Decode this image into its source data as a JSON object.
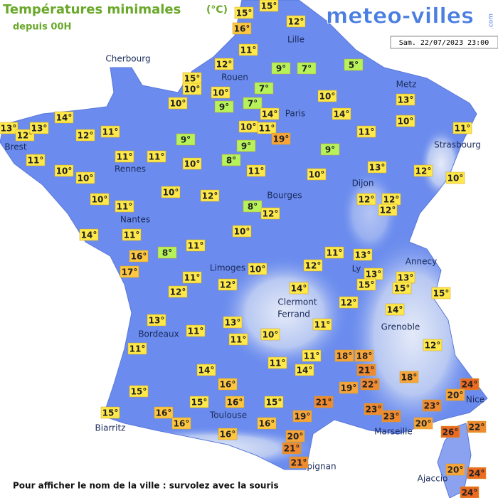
{
  "header": {
    "title": "Températures minimales",
    "unit": "(°C)",
    "subtitle": "depuis 00H",
    "logo": "meteo-villes",
    "logo_suffix": ".com",
    "datetime": "Sam. 22/07/2023 23:00"
  },
  "footer": "Pour afficher le nom de la ville : survolez avec la souris",
  "cities": [
    "Cherbourg",
    "Lille",
    "Rouen",
    "Paris",
    "Metz",
    "Brest",
    "Rennes",
    "Strasbourg",
    "Dijon",
    "Bourges",
    "Nantes",
    "Limoges",
    "Ly",
    "Annecy",
    "Clermont",
    "Ferrand",
    "Grenoble",
    "Bordeaux",
    "Nice",
    "Toulouse",
    "Marseille",
    "Biarritz",
    "pignan",
    "Ajaccio"
  ],
  "readings": [
    {
      "value": 15,
      "label": "15°"
    },
    {
      "value": 15,
      "label": "15°"
    },
    {
      "value": 12,
      "label": "12°"
    },
    {
      "value": 16,
      "label": "16°"
    },
    {
      "value": 11,
      "label": "11°"
    },
    {
      "value": 9,
      "label": "9°"
    },
    {
      "value": 7,
      "label": "7°"
    },
    {
      "value": 5,
      "label": "5°"
    },
    {
      "value": 12,
      "label": "12°"
    },
    {
      "value": 15,
      "label": "15°"
    },
    {
      "value": 10,
      "label": "10°"
    },
    {
      "value": 10,
      "label": "10°"
    },
    {
      "value": 7,
      "label": "7°"
    },
    {
      "value": 9,
      "label": "9°"
    },
    {
      "value": 7,
      "label": "7°"
    },
    {
      "value": 10,
      "label": "10°"
    },
    {
      "value": 14,
      "label": "14°"
    },
    {
      "value": 10,
      "label": "10°"
    },
    {
      "value": 13,
      "label": "13°"
    },
    {
      "value": 14,
      "label": "14°"
    },
    {
      "value": 10,
      "label": "10°"
    },
    {
      "value": 13,
      "label": "13°"
    },
    {
      "value": 12,
      "label": "12°"
    },
    {
      "value": 13,
      "label": "13°"
    },
    {
      "value": 14,
      "label": "14°"
    },
    {
      "value": 12,
      "label": "12°"
    },
    {
      "value": 11,
      "label": "11°"
    },
    {
      "value": 10,
      "label": "10°"
    },
    {
      "value": 11,
      "label": "11°"
    },
    {
      "value": 19,
      "label": "19°"
    },
    {
      "value": 11,
      "label": "11°"
    },
    {
      "value": 11,
      "label": "11°"
    },
    {
      "value": 9,
      "label": "9°"
    },
    {
      "value": 9,
      "label": "9°"
    },
    {
      "value": 9,
      "label": "9°"
    },
    {
      "value": 11,
      "label": "11°"
    },
    {
      "value": 11,
      "label": "11°"
    },
    {
      "value": 11,
      "label": "11°"
    },
    {
      "value": 10,
      "label": "10°"
    },
    {
      "value": 8,
      "label": "8°"
    },
    {
      "value": 10,
      "label": "10°"
    },
    {
      "value": 10,
      "label": "10°"
    },
    {
      "value": 11,
      "label": "11°"
    },
    {
      "value": 10,
      "label": "10°"
    },
    {
      "value": 13,
      "label": "13°"
    },
    {
      "value": 12,
      "label": "12°"
    },
    {
      "value": 10,
      "label": "10°"
    },
    {
      "value": 10,
      "label": "10°"
    },
    {
      "value": 11,
      "label": "11°"
    },
    {
      "value": 10,
      "label": "10°"
    },
    {
      "value": 12,
      "label": "12°"
    },
    {
      "value": 8,
      "label": "8°"
    },
    {
      "value": 12,
      "label": "12°"
    },
    {
      "value": 12,
      "label": "12°"
    },
    {
      "value": 12,
      "label": "12°"
    },
    {
      "value": 12,
      "label": "12°"
    },
    {
      "value": 14,
      "label": "14°"
    },
    {
      "value": 11,
      "label": "11°"
    },
    {
      "value": 10,
      "label": "10°"
    },
    {
      "value": 16,
      "label": "16°"
    },
    {
      "value": 8,
      "label": "8°"
    },
    {
      "value": 11,
      "label": "11°"
    },
    {
      "value": 17,
      "label": "17°"
    },
    {
      "value": 11,
      "label": "11°"
    },
    {
      "value": 11,
      "label": "11°"
    },
    {
      "value": 13,
      "label": "13°"
    },
    {
      "value": 10,
      "label": "10°"
    },
    {
      "value": 12,
      "label": "12°"
    },
    {
      "value": 13,
      "label": "13°"
    },
    {
      "value": 13,
      "label": "13°"
    },
    {
      "value": 15,
      "label": "15°"
    },
    {
      "value": 15,
      "label": "15°"
    },
    {
      "value": 15,
      "label": "15°"
    },
    {
      "value": 12,
      "label": "12°"
    },
    {
      "value": 12,
      "label": "12°"
    },
    {
      "value": 14,
      "label": "14°"
    },
    {
      "value": 12,
      "label": "12°"
    },
    {
      "value": 14,
      "label": "14°"
    },
    {
      "value": 13,
      "label": "13°"
    },
    {
      "value": 13,
      "label": "13°"
    },
    {
      "value": 11,
      "label": "11°"
    },
    {
      "value": 11,
      "label": "11°"
    },
    {
      "value": 11,
      "label": "11°"
    },
    {
      "value": 10,
      "label": "10°"
    },
    {
      "value": 12,
      "label": "12°"
    },
    {
      "value": 11,
      "label": "11°"
    },
    {
      "value": 11,
      "label": "11°"
    },
    {
      "value": 18,
      "label": "18°"
    },
    {
      "value": 18,
      "label": "18°"
    },
    {
      "value": 11,
      "label": "11°"
    },
    {
      "value": 14,
      "label": "14°"
    },
    {
      "value": 21,
      "label": "21°"
    },
    {
      "value": 18,
      "label": "18°"
    },
    {
      "value": 14,
      "label": "14°"
    },
    {
      "value": 16,
      "label": "16°"
    },
    {
      "value": 19,
      "label": "19°"
    },
    {
      "value": 22,
      "label": "22°"
    },
    {
      "value": 24,
      "label": "24°"
    },
    {
      "value": 15,
      "label": "15°"
    },
    {
      "value": 20,
      "label": "20°"
    },
    {
      "value": 15,
      "label": "15°"
    },
    {
      "value": 16,
      "label": "16°"
    },
    {
      "value": 15,
      "label": "15°"
    },
    {
      "value": 21,
      "label": "21°"
    },
    {
      "value": 23,
      "label": "23°"
    },
    {
      "value": 23,
      "label": "23°"
    },
    {
      "value": 15,
      "label": "15°"
    },
    {
      "value": 16,
      "label": "16°"
    },
    {
      "value": 16,
      "label": "16°"
    },
    {
      "value": 16,
      "label": "16°"
    },
    {
      "value": 19,
      "label": "19°"
    },
    {
      "value": 23,
      "label": "23°"
    },
    {
      "value": 20,
      "label": "20°"
    },
    {
      "value": 22,
      "label": "22°"
    },
    {
      "value": 26,
      "label": "26°"
    },
    {
      "value": 16,
      "label": "16°"
    },
    {
      "value": 20,
      "label": "20°"
    },
    {
      "value": 21,
      "label": "21°"
    },
    {
      "value": 21,
      "label": "21°"
    },
    {
      "value": 20,
      "label": "20°"
    },
    {
      "value": 24,
      "label": "24°"
    },
    {
      "value": 24,
      "label": "24°"
    }
  ]
}
